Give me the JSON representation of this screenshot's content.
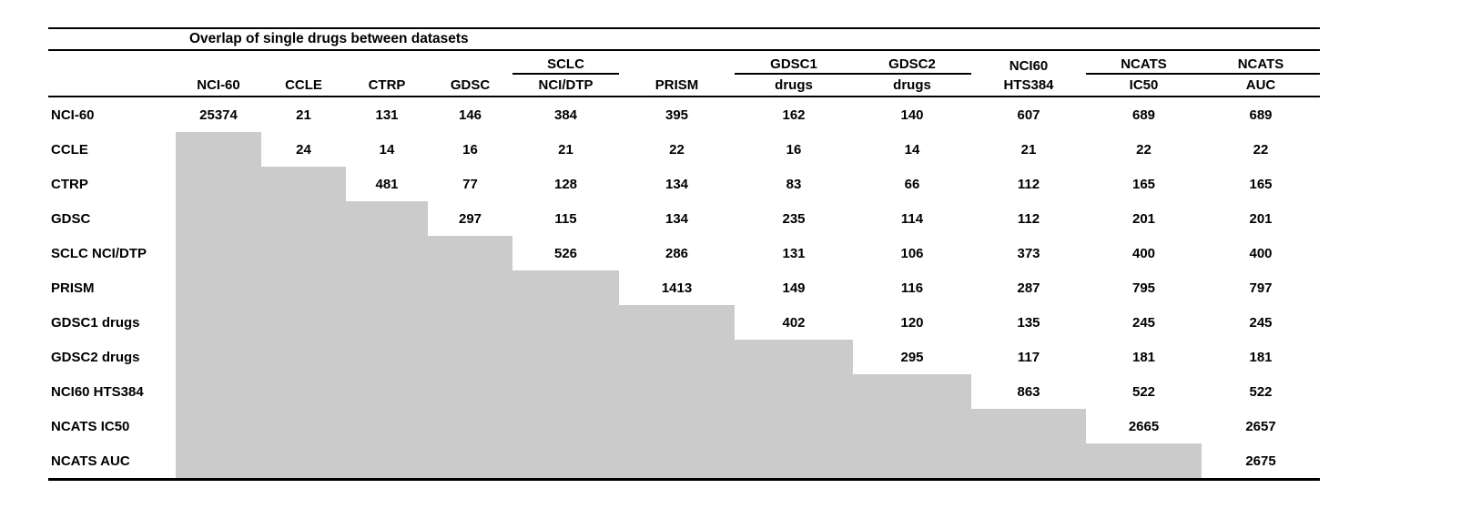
{
  "title": "Overlap of single drugs between datasets",
  "colors": {
    "shade": "#cbcbcb",
    "line": "#000000",
    "text": "#000000",
    "background": "#ffffff"
  },
  "table": {
    "group_headers": [
      "",
      "",
      "",
      "",
      "SCLC",
      "",
      "GDSC1",
      "GDSC2",
      "NCI60",
      "NCATS",
      "NCATS"
    ],
    "column_headers": [
      "NCI-60",
      "CCLE",
      "CTRP",
      "GDSC",
      "NCI/DTP",
      "PRISM",
      "drugs",
      "drugs",
      "HTS384",
      "IC50",
      "AUC"
    ],
    "rows": [
      {
        "label": "NCI-60",
        "values": [
          "25374",
          "21",
          "131",
          "146",
          "384",
          "395",
          "162",
          "140",
          "607",
          "689",
          "689"
        ]
      },
      {
        "label": "CCLE",
        "values": [
          null,
          "24",
          "14",
          "16",
          "21",
          "22",
          "16",
          "14",
          "21",
          "22",
          "22"
        ]
      },
      {
        "label": "CTRP",
        "values": [
          null,
          null,
          "481",
          "77",
          "128",
          "134",
          "83",
          "66",
          "112",
          "165",
          "165"
        ]
      },
      {
        "label": "GDSC",
        "values": [
          null,
          null,
          null,
          "297",
          "115",
          "134",
          "235",
          "114",
          "112",
          "201",
          "201"
        ]
      },
      {
        "label": "SCLC NCI/DTP",
        "values": [
          null,
          null,
          null,
          null,
          "526",
          "286",
          "131",
          "106",
          "373",
          "400",
          "400"
        ]
      },
      {
        "label": "PRISM",
        "values": [
          null,
          null,
          null,
          null,
          null,
          "1413",
          "149",
          "116",
          "287",
          "795",
          "797"
        ]
      },
      {
        "label": "GDSC1 drugs",
        "values": [
          null,
          null,
          null,
          null,
          null,
          null,
          "402",
          "120",
          "135",
          "245",
          "245"
        ]
      },
      {
        "label": "GDSC2 drugs",
        "values": [
          null,
          null,
          null,
          null,
          null,
          null,
          null,
          "295",
          "117",
          "181",
          "181"
        ]
      },
      {
        "label": "NCI60 HTS384",
        "values": [
          null,
          null,
          null,
          null,
          null,
          null,
          null,
          null,
          "863",
          "522",
          "522"
        ]
      },
      {
        "label": "NCATS IC50",
        "values": [
          null,
          null,
          null,
          null,
          null,
          null,
          null,
          null,
          null,
          "2665",
          "2657"
        ]
      },
      {
        "label": "NCATS AUC",
        "values": [
          null,
          null,
          null,
          null,
          null,
          null,
          null,
          null,
          null,
          null,
          "2675"
        ]
      }
    ]
  }
}
